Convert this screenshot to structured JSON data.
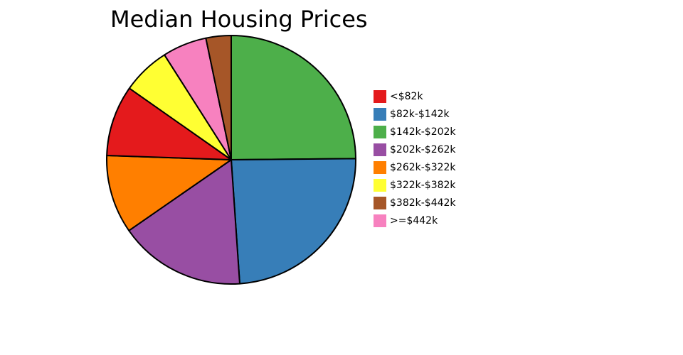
{
  "chart_data": {
    "type": "pie",
    "title": "Median Housing Prices",
    "start_angle_deg": 0,
    "direction": "clockwise",
    "slices": [
      {
        "label": "$142k-$202k",
        "value": 25.1,
        "color": "#4daf4a"
      },
      {
        "label": "$82k-$142k",
        "value": 24.3,
        "color": "#377eb8"
      },
      {
        "label": "$202k-$262k",
        "value": 16.6,
        "color": "#984ea3"
      },
      {
        "label": "$262k-$322k",
        "value": 10.3,
        "color": "#ff7f00"
      },
      {
        "label": "<$82k",
        "value": 9.3,
        "color": "#e41a1c"
      },
      {
        "label": "$322k-$382k",
        "value": 6.3,
        "color": "#ffff33"
      },
      {
        "label": ">=$442k",
        "value": 5.8,
        "color": "#f781bf"
      },
      {
        "label": "$382k-$442k",
        "value": 3.3,
        "color": "#a65628"
      }
    ],
    "legend": [
      {
        "label": "<$82k",
        "color": "#e41a1c"
      },
      {
        "label": "$82k-$142k",
        "color": "#377eb8"
      },
      {
        "label": "$142k-$202k",
        "color": "#4daf4a"
      },
      {
        "label": "$202k-$262k",
        "color": "#984ea3"
      },
      {
        "label": "$262k-$322k",
        "color": "#ff7f00"
      },
      {
        "label": "$322k-$382k",
        "color": "#ffff33"
      },
      {
        "label": "$382k-$442k",
        "color": "#a65628"
      },
      {
        "label": ">=$442k",
        "color": "#f781bf"
      }
    ],
    "legend_position": "right"
  }
}
